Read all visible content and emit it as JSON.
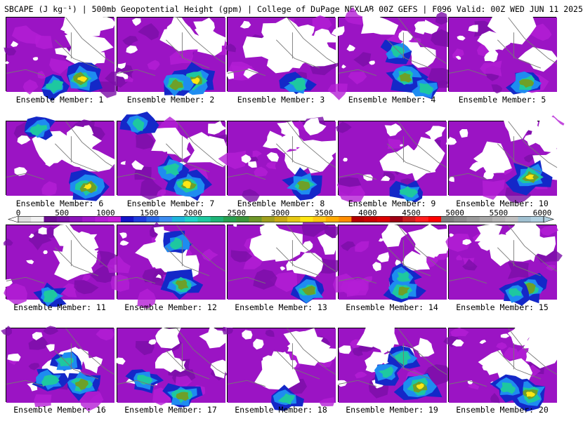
{
  "title": "SBCAPE (J kg⁻¹) | 500mb Geopotential Height (gpm) | College of DuPage NEXLAB 00Z GEFS | F096 Valid: 00Z WED JUN 11 2025",
  "colorbar": {
    "tick_labels": [
      "0",
      "500",
      "1000",
      "1500",
      "2000",
      "2500",
      "3000",
      "3500",
      "4000",
      "4500",
      "5000",
      "5500",
      "6000"
    ],
    "colors": [
      "#e0e0e0",
      "#f2f2f2",
      "#6a0d8f",
      "#7a10a6",
      "#8a14b8",
      "#a018c8",
      "#b41cd2",
      "#c81ed8",
      "#1414c8",
      "#1e3cdc",
      "#2864e6",
      "#3c8cf0",
      "#1eb4dc",
      "#1ed2c8",
      "#1ec8a0",
      "#1eb478",
      "#28a050",
      "#3c963c",
      "#6e9628",
      "#a0a01e",
      "#c8aa14",
      "#e6c814",
      "#ffe614",
      "#ffc814",
      "#ffaa00",
      "#ff8c00",
      "#b40000",
      "#c80000",
      "#dc0000",
      "#a00014",
      "#c81e1e",
      "#ff1e1e",
      "#ff0000",
      "#808080",
      "#8c8c8c",
      "#999999",
      "#a6a6a6",
      "#b3b3b3",
      "#bfbfbf",
      "#a0c0d0",
      "#b0d0e0"
    ]
  },
  "panels": [
    {
      "label": "Ensemble Member: 1",
      "hotspots": [
        [
          0.7,
          0.82,
          3
        ],
        [
          0.45,
          0.92,
          1
        ]
      ]
    },
    {
      "label": "Ensemble Member: 2",
      "hotspots": [
        [
          0.72,
          0.85,
          3
        ],
        [
          0.55,
          0.9,
          2
        ]
      ]
    },
    {
      "label": "Ensemble Member: 3",
      "hotspots": [
        [
          0.65,
          0.9,
          1
        ]
      ]
    },
    {
      "label": "Ensemble Member: 4",
      "hotspots": [
        [
          0.62,
          0.8,
          2
        ],
        [
          0.55,
          0.45,
          1
        ],
        [
          0.8,
          0.95,
          1
        ]
      ]
    },
    {
      "label": "Ensemble Member: 5",
      "hotspots": [
        [
          0.72,
          0.88,
          2
        ]
      ]
    },
    {
      "label": "Ensemble Member: 6",
      "hotspots": [
        [
          0.75,
          0.88,
          3
        ],
        [
          0.3,
          0.1,
          1
        ]
      ]
    },
    {
      "label": "Ensemble Member: 7",
      "hotspots": [
        [
          0.65,
          0.85,
          3
        ],
        [
          0.5,
          0.65,
          1
        ],
        [
          0.2,
          0.05,
          1
        ]
      ]
    },
    {
      "label": "Ensemble Member: 8",
      "hotspots": [
        [
          0.7,
          0.85,
          2
        ]
      ]
    },
    {
      "label": "Ensemble Member: 9",
      "hotspots": [
        [
          0.65,
          0.95,
          1
        ]
      ]
    },
    {
      "label": "Ensemble Member: 10",
      "hotspots": [
        [
          0.75,
          0.75,
          3
        ]
      ]
    },
    {
      "label": "Ensemble Member: 11",
      "hotspots": [
        [
          0.4,
          0.95,
          1
        ]
      ]
    },
    {
      "label": "Ensemble Member: 12",
      "hotspots": [
        [
          0.6,
          0.8,
          2
        ],
        [
          0.55,
          0.25,
          1
        ]
      ]
    },
    {
      "label": "Ensemble Member: 13",
      "hotspots": [
        [
          0.75,
          0.88,
          2
        ]
      ]
    },
    {
      "label": "Ensemble Member: 14",
      "hotspots": [
        [
          0.6,
          0.88,
          2
        ],
        [
          0.6,
          0.7,
          1
        ]
      ]
    },
    {
      "label": "Ensemble Member: 15",
      "hotspots": [
        [
          0.75,
          0.85,
          2
        ],
        [
          0.6,
          0.9,
          1
        ]
      ]
    },
    {
      "label": "Ensemble Member: 16",
      "hotspots": [
        [
          0.7,
          0.75,
          2
        ],
        [
          0.55,
          0.45,
          1
        ],
        [
          0.4,
          0.7,
          1
        ]
      ]
    },
    {
      "label": "Ensemble Member: 17",
      "hotspots": [
        [
          0.6,
          0.9,
          2
        ],
        [
          0.25,
          0.7,
          1
        ]
      ]
    },
    {
      "label": "Ensemble Member: 18",
      "hotspots": [
        [
          0.55,
          0.95,
          1
        ]
      ]
    },
    {
      "label": "Ensemble Member: 19",
      "hotspots": [
        [
          0.75,
          0.78,
          3
        ],
        [
          0.6,
          0.4,
          1
        ],
        [
          0.45,
          0.6,
          1
        ]
      ]
    },
    {
      "label": "Ensemble Member: 20",
      "hotspots": [
        [
          0.75,
          0.88,
          3
        ],
        [
          0.55,
          0.8,
          1
        ]
      ]
    }
  ]
}
